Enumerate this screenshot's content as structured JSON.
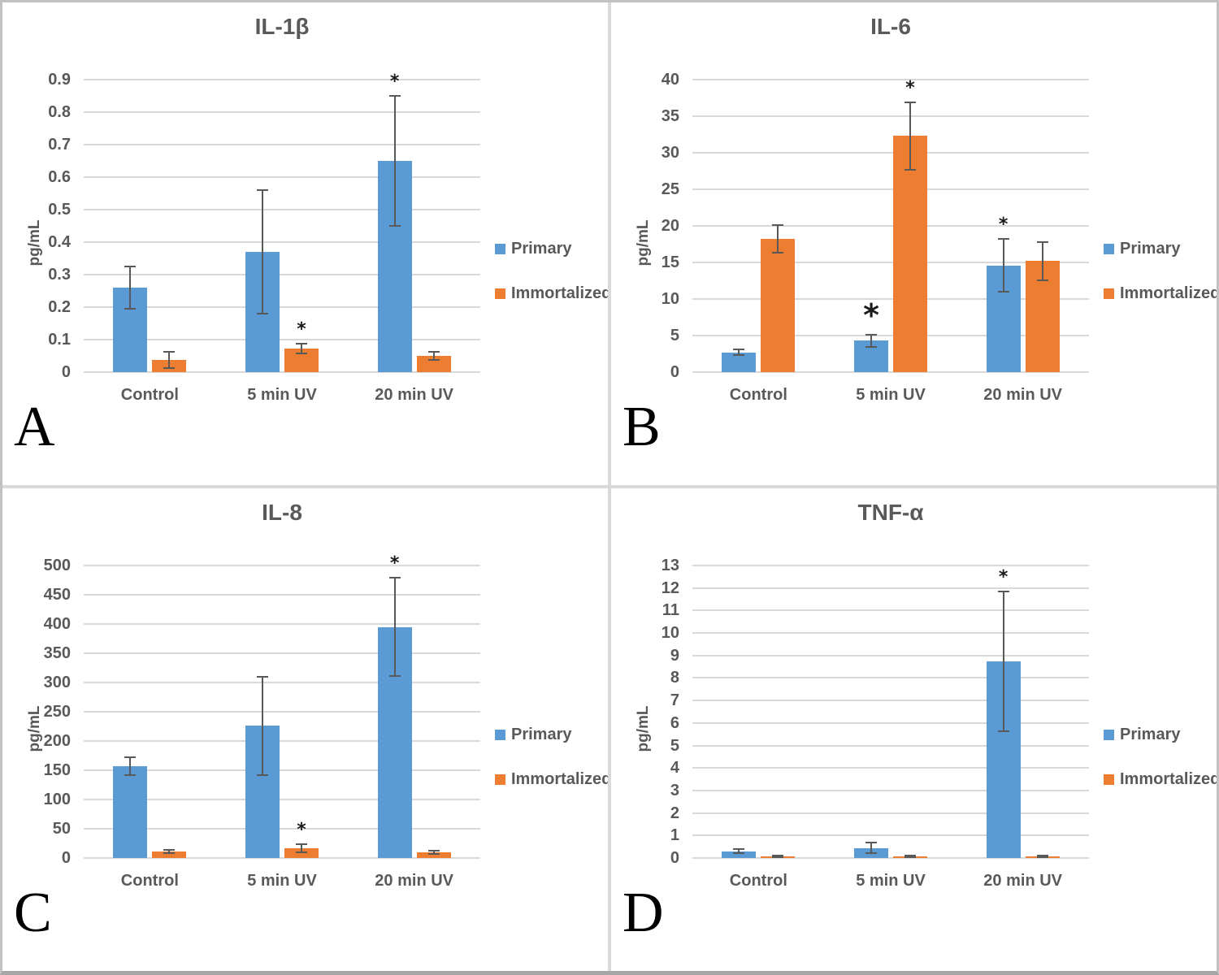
{
  "figure_label": "Four-panel cytokine ELISA bar charts",
  "colors": {
    "primary": "#5B9BD5",
    "immortalized": "#ED7D31",
    "gridline": "#d9d9d9",
    "axis_text": "#595959",
    "error_bar": "#595959",
    "significance_marker": "#1a1a1a"
  },
  "sig_marker": "*",
  "chart_data": [
    {
      "type": "bar",
      "panel_letter": "A",
      "title": "IL-1β",
      "ylabel": "pg/mL",
      "ylim": [
        0,
        0.9
      ],
      "ystep": 0.1,
      "ytick_labels": [
        "0",
        "0.1",
        "0.2",
        "0.3",
        "0.4",
        "0.5",
        "0.6",
        "0.7",
        "0.8",
        "0.9"
      ],
      "categories": [
        "Control",
        "5 min UV",
        "20 min UV"
      ],
      "grid": true,
      "legend_position": "right",
      "series": [
        {
          "name": "Primary",
          "color_key": "primary",
          "values": [
            0.26,
            0.37,
            0.65
          ],
          "errors": [
            0.065,
            0.19,
            0.2
          ],
          "significant": [
            false,
            false,
            true
          ]
        },
        {
          "name": "Immortalized",
          "color_key": "immortalized",
          "values": [
            0.038,
            0.073,
            0.05
          ],
          "errors": [
            0.025,
            0.015,
            0.012
          ],
          "significant": [
            false,
            true,
            false
          ]
        }
      ]
    },
    {
      "type": "bar",
      "panel_letter": "B",
      "title": "IL-6",
      "ylabel": "pg/mL",
      "ylim": [
        0,
        40
      ],
      "ystep": 5,
      "ytick_labels": [
        "0",
        "5",
        "10",
        "15",
        "20",
        "25",
        "30",
        "35",
        "40"
      ],
      "categories": [
        "Control",
        "5 min UV",
        "20 min UV"
      ],
      "grid": true,
      "legend_position": "right",
      "series": [
        {
          "name": "Primary",
          "color_key": "primary",
          "values": [
            2.7,
            4.3,
            14.6
          ],
          "errors": [
            0.4,
            0.8,
            3.6
          ],
          "significant": [
            false,
            "large",
            true
          ]
        },
        {
          "name": "Immortalized",
          "color_key": "immortalized",
          "values": [
            18.2,
            32.3,
            15.2
          ],
          "errors": [
            1.9,
            4.6,
            2.6
          ],
          "significant": [
            false,
            true,
            false
          ]
        }
      ]
    },
    {
      "type": "bar",
      "panel_letter": "C",
      "title": "IL-8",
      "ylabel": "pg/mL",
      "ylim": [
        0,
        500
      ],
      "ystep": 50,
      "ytick_labels": [
        "0",
        "50",
        "100",
        "150",
        "200",
        "250",
        "300",
        "350",
        "400",
        "450",
        "500"
      ],
      "categories": [
        "Control",
        "5 min UV",
        "20 min UV"
      ],
      "grid": true,
      "legend_position": "right",
      "series": [
        {
          "name": "Primary",
          "color_key": "primary",
          "values": [
            157,
            226,
            395
          ],
          "errors": [
            15,
            84,
            84
          ],
          "significant": [
            false,
            false,
            true
          ]
        },
        {
          "name": "Immortalized",
          "color_key": "immortalized",
          "values": [
            11,
            17,
            10
          ],
          "errors": [
            3,
            7,
            3
          ],
          "significant": [
            false,
            true,
            false
          ]
        }
      ]
    },
    {
      "type": "bar",
      "panel_letter": "D",
      "title": "TNF-α",
      "ylabel": "pg/mL",
      "ylim": [
        0,
        13
      ],
      "ystep": 1,
      "ytick_labels": [
        "0",
        "1",
        "2",
        "3",
        "4",
        "5",
        "6",
        "7",
        "8",
        "9",
        "10",
        "11",
        "12",
        "13"
      ],
      "categories": [
        "Control",
        "5 min UV",
        "20 min UV"
      ],
      "grid": true,
      "legend_position": "right",
      "series": [
        {
          "name": "Primary",
          "color_key": "primary",
          "values": [
            0.3,
            0.45,
            8.75
          ],
          "errors": [
            0.08,
            0.25,
            3.1
          ],
          "significant": [
            false,
            false,
            true
          ]
        },
        {
          "name": "Immortalized",
          "color_key": "immortalized",
          "values": [
            0.07,
            0.07,
            0.07
          ],
          "errors": [
            0.03,
            0.03,
            0.03
          ],
          "significant": [
            false,
            false,
            false
          ]
        }
      ]
    }
  ]
}
